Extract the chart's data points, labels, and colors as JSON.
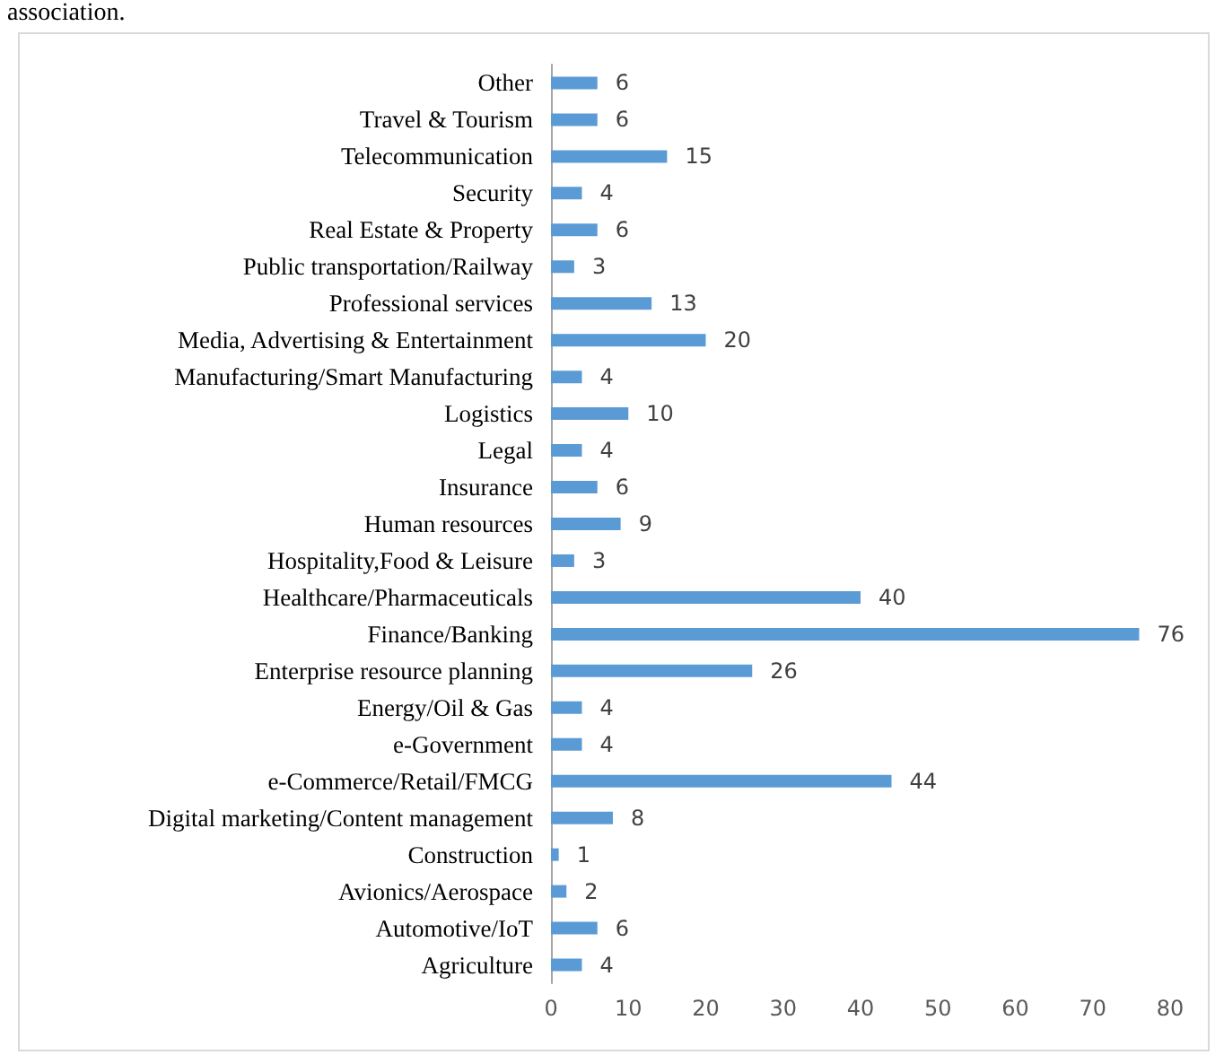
{
  "chart_data": {
    "type": "bar",
    "orientation": "horizontal",
    "annotations": [
      "association."
    ],
    "categories": [
      "Other",
      "Travel & Tourism",
      "Telecommunication",
      "Security",
      "Real Estate & Property",
      "Public transportation/Railway",
      "Professional services",
      "Media, Advertising & Entertainment",
      "Manufacturing/Smart Manufacturing",
      "Logistics",
      "Legal",
      "Insurance",
      "Human resources",
      "Hospitality,Food & Leisure",
      "Healthcare/Pharmaceuticals",
      "Finance/Banking",
      "Enterprise resource planning",
      "Energy/Oil & Gas",
      "e-Government",
      "e-Commerce/Retail/FMCG",
      "Digital marketing/Content management",
      "Construction",
      "Avionics/Aerospace",
      "Automotive/IoT",
      "Agriculture"
    ],
    "values": [
      6,
      6,
      15,
      4,
      6,
      3,
      13,
      20,
      4,
      10,
      4,
      6,
      9,
      3,
      40,
      76,
      26,
      4,
      4,
      44,
      8,
      1,
      2,
      6,
      4
    ],
    "color": "#5b9bd5",
    "xlim": [
      0,
      80
    ],
    "xticks": [
      0,
      10,
      20,
      30,
      40,
      50,
      60,
      70,
      80
    ],
    "grid": false,
    "data_labels": true
  }
}
